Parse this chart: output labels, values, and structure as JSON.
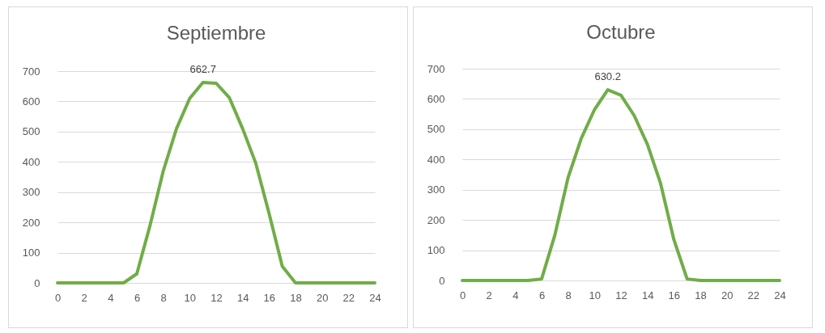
{
  "chart_data": [
    {
      "type": "line",
      "title": "Septiembre",
      "x": [
        0,
        1,
        2,
        3,
        4,
        5,
        6,
        7,
        8,
        9,
        10,
        11,
        12,
        13,
        14,
        15,
        16,
        17,
        18,
        19,
        20,
        21,
        22,
        23,
        24
      ],
      "series": [
        {
          "color": "#70ad47",
          "values": [
            0,
            0,
            0,
            0,
            0,
            0,
            30,
            190,
            370,
            510,
            610,
            662.7,
            660,
            612,
            510,
            395,
            230,
            55,
            0,
            0,
            0,
            0,
            0,
            0,
            0
          ],
          "value_labels": [
            null,
            null,
            null,
            null,
            null,
            null,
            null,
            null,
            null,
            null,
            null,
            "662.7",
            null,
            null,
            null,
            null,
            null,
            null,
            null,
            null,
            null,
            null,
            null,
            null,
            null
          ]
        }
      ],
      "xlim": [
        0,
        24
      ],
      "xticks": [
        0,
        2,
        4,
        6,
        8,
        10,
        12,
        14,
        16,
        18,
        20,
        22,
        24
      ],
      "ylim": [
        0,
        700
      ],
      "yticks": [
        0,
        100,
        200,
        300,
        400,
        500,
        600,
        700
      ],
      "grid": "y",
      "marker": "none"
    },
    {
      "type": "line",
      "title": "Octubre",
      "x": [
        0,
        1,
        2,
        3,
        4,
        5,
        6,
        7,
        8,
        9,
        10,
        11,
        12,
        13,
        14,
        15,
        16,
        17,
        18,
        19,
        20,
        21,
        22,
        23,
        24
      ],
      "series": [
        {
          "color": "#70ad47",
          "values": [
            0,
            0,
            0,
            0,
            0,
            0,
            5,
            150,
            340,
            470,
            565,
            630.2,
            612,
            545,
            450,
            320,
            135,
            5,
            0,
            0,
            0,
            0,
            0,
            0,
            0
          ],
          "value_labels": [
            null,
            null,
            null,
            null,
            null,
            null,
            null,
            null,
            null,
            null,
            null,
            "630.2",
            null,
            null,
            null,
            null,
            null,
            null,
            null,
            null,
            null,
            null,
            null,
            null,
            null
          ]
        }
      ],
      "xlim": [
        0,
        24
      ],
      "xticks": [
        0,
        2,
        4,
        6,
        8,
        10,
        12,
        14,
        16,
        18,
        20,
        22,
        24
      ],
      "ylim": [
        0,
        700
      ],
      "yticks": [
        0,
        100,
        200,
        300,
        400,
        500,
        600,
        700
      ],
      "grid": "y",
      "marker": "none"
    }
  ]
}
